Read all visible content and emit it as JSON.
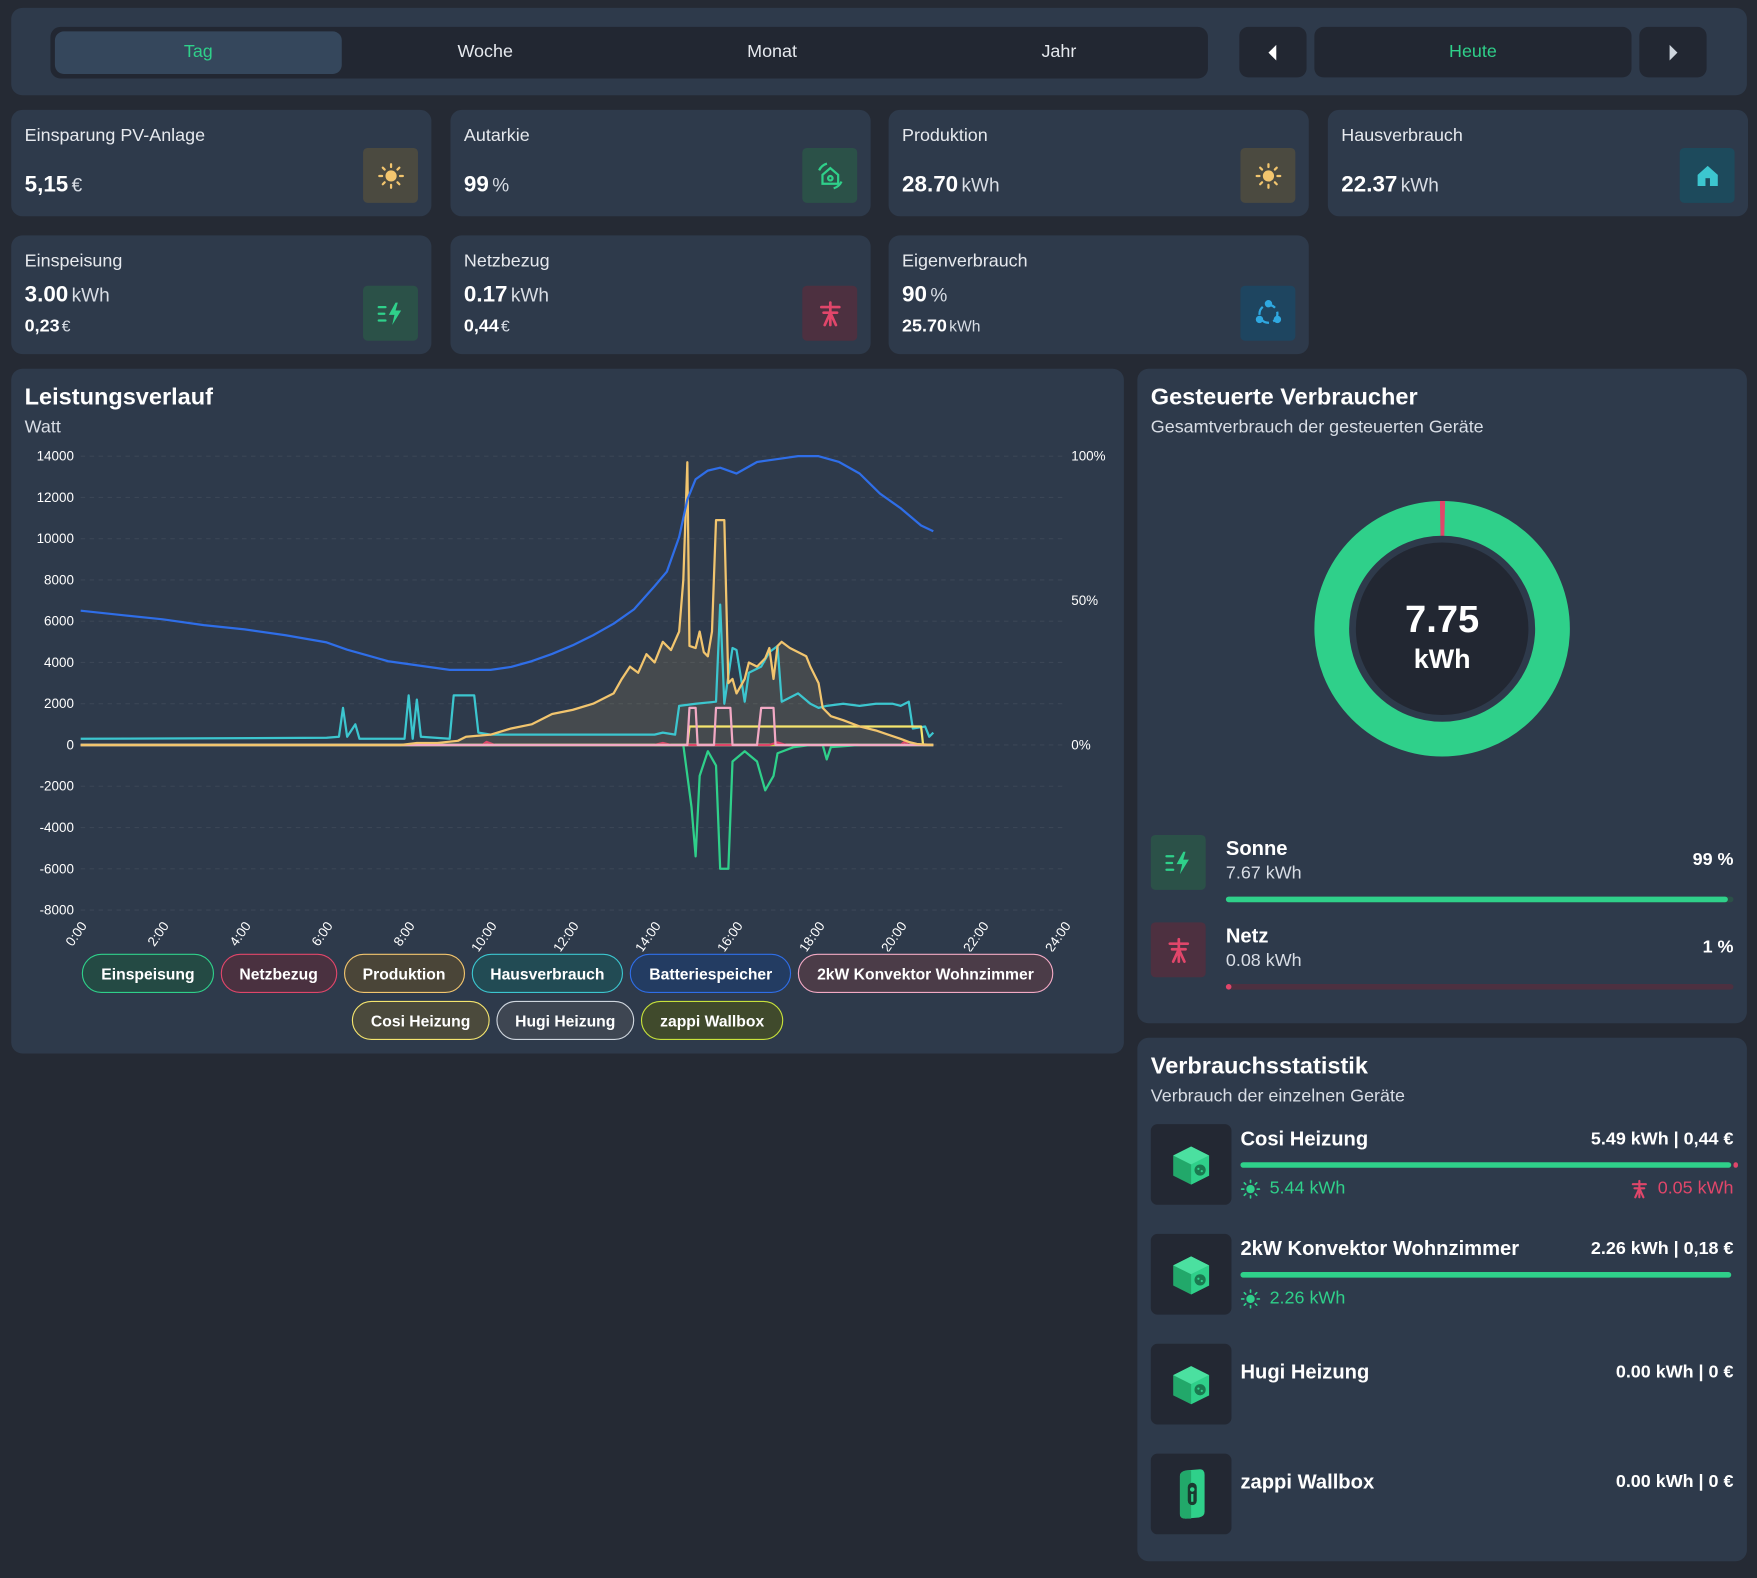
{
  "period_tabs": [
    "Tag",
    "Woche",
    "Monat",
    "Jahr"
  ],
  "active_tab": "Tag",
  "nav": {
    "today_label": "Heute"
  },
  "kpis": [
    {
      "title": "Einsparung PV-Anlage",
      "value": "5,15",
      "unit": "€",
      "icon": "sun-icon"
    },
    {
      "title": "Autarkie",
      "value": "99",
      "unit": "%",
      "icon": "autarky-icon"
    },
    {
      "title": "Produktion",
      "value": "28.70",
      "unit": "kWh",
      "icon": "sun-icon"
    },
    {
      "title": "Hausverbrauch",
      "value": "22.37",
      "unit": "kWh",
      "icon": "house-icon"
    },
    {
      "title": "Einspeisung",
      "value": "3.00",
      "unit": "kWh",
      "sub_value": "0,23",
      "sub_unit": "€",
      "icon": "feed-in-icon"
    },
    {
      "title": "Netzbezug",
      "value": "0.17",
      "unit": "kWh",
      "sub_value": "0,44",
      "sub_unit": "€",
      "icon": "grid-pylon-icon"
    },
    {
      "title": "Eigenverbrauch",
      "value": "90",
      "unit": "%",
      "sub_value": "25.70",
      "sub_unit": "kWh",
      "icon": "self-consumption-icon"
    }
  ],
  "power_chart": {
    "title": "Leistungsverlauf",
    "unit_label": "Watt"
  },
  "chart_data": {
    "type": "line",
    "title": "Leistungsverlauf",
    "ylabel": "Watt",
    "ylim": [
      -8000,
      14000
    ],
    "y_ticks": [
      "14000",
      "12000",
      "10000",
      "8000",
      "6000",
      "4000",
      "2000",
      "0",
      "-2000",
      "-4000",
      "-6000",
      "-8000"
    ],
    "y2_ticks": [
      "100%",
      "50%",
      "0%"
    ],
    "x_ticks": [
      "0:00",
      "2:00",
      "4:00",
      "6:00",
      "8:00",
      "10:00",
      "12:00",
      "14:00",
      "16:00",
      "18:00",
      "20:00",
      "22:00",
      "24:00"
    ],
    "series": [
      {
        "name": "Einspeisung",
        "color": "#2fd08a",
        "axis": "left",
        "points": [
          [
            0,
            0
          ],
          [
            14.7,
            0
          ],
          [
            14.9,
            -3000
          ],
          [
            15.0,
            -5400
          ],
          [
            15.1,
            -1500
          ],
          [
            15.3,
            -300
          ],
          [
            15.5,
            -1000
          ],
          [
            15.6,
            -6000
          ],
          [
            15.8,
            -6000
          ],
          [
            15.9,
            -800
          ],
          [
            16.2,
            -300
          ],
          [
            16.5,
            -800
          ],
          [
            16.7,
            -2200
          ],
          [
            16.9,
            -1500
          ],
          [
            17.0,
            -400
          ],
          [
            17.4,
            -100
          ],
          [
            17.8,
            0
          ],
          [
            18.1,
            0
          ],
          [
            18.2,
            -700
          ],
          [
            18.3,
            -100
          ],
          [
            19.0,
            0
          ],
          [
            20.8,
            0
          ]
        ]
      },
      {
        "name": "Netzbezug",
        "color": "#e0466a",
        "axis": "left",
        "points": [
          [
            0,
            0
          ],
          [
            9.8,
            0
          ],
          [
            9.9,
            150
          ],
          [
            10.1,
            0
          ],
          [
            14.0,
            0
          ],
          [
            14.2,
            100
          ],
          [
            14.4,
            0
          ],
          [
            16.8,
            0
          ],
          [
            17.0,
            120
          ],
          [
            17.2,
            0
          ],
          [
            20.0,
            0
          ],
          [
            20.1,
            150
          ],
          [
            20.2,
            0
          ],
          [
            20.8,
            0
          ]
        ]
      },
      {
        "name": "Produktion",
        "color": "#f2c56e",
        "axis": "left",
        "points": [
          [
            0,
            0
          ],
          [
            7.8,
            0
          ],
          [
            8.2,
            100
          ],
          [
            8.7,
            100
          ],
          [
            9.2,
            200
          ],
          [
            9.4,
            400
          ],
          [
            10.0,
            500
          ],
          [
            10.5,
            800
          ],
          [
            11.0,
            1000
          ],
          [
            11.5,
            1500
          ],
          [
            12.0,
            1700
          ],
          [
            12.5,
            2000
          ],
          [
            13.0,
            2500
          ],
          [
            13.2,
            3200
          ],
          [
            13.4,
            3800
          ],
          [
            13.6,
            3500
          ],
          [
            13.8,
            4400
          ],
          [
            14.0,
            4000
          ],
          [
            14.2,
            5000
          ],
          [
            14.4,
            4600
          ],
          [
            14.6,
            5500
          ],
          [
            14.7,
            8000
          ],
          [
            14.8,
            13700
          ],
          [
            14.85,
            4800
          ],
          [
            15.0,
            4700
          ],
          [
            15.1,
            5500
          ],
          [
            15.2,
            4500
          ],
          [
            15.3,
            4300
          ],
          [
            15.4,
            5500
          ],
          [
            15.5,
            10900
          ],
          [
            15.7,
            10900
          ],
          [
            15.8,
            3000
          ],
          [
            15.9,
            3200
          ],
          [
            16.0,
            2500
          ],
          [
            16.2,
            3200
          ],
          [
            16.3,
            4000
          ],
          [
            16.5,
            3800
          ],
          [
            16.7,
            4200
          ],
          [
            16.8,
            4700
          ],
          [
            16.9,
            3200
          ],
          [
            17.0,
            4800
          ],
          [
            17.1,
            5000
          ],
          [
            17.3,
            4700
          ],
          [
            17.5,
            4500
          ],
          [
            17.7,
            4300
          ],
          [
            17.8,
            3800
          ],
          [
            18.0,
            3000
          ],
          [
            18.1,
            1800
          ],
          [
            18.3,
            1400
          ],
          [
            18.6,
            1200
          ],
          [
            19.0,
            900
          ],
          [
            19.4,
            700
          ],
          [
            19.7,
            500
          ],
          [
            20.0,
            300
          ],
          [
            20.2,
            150
          ],
          [
            20.4,
            50
          ],
          [
            20.8,
            0
          ]
        ]
      },
      {
        "name": "Hausverbrauch",
        "color": "#3cc6cf",
        "axis": "left",
        "points": [
          [
            0,
            300
          ],
          [
            6.0,
            350
          ],
          [
            6.3,
            400
          ],
          [
            6.4,
            1800
          ],
          [
            6.5,
            400
          ],
          [
            6.7,
            1000
          ],
          [
            6.8,
            300
          ],
          [
            7.9,
            300
          ],
          [
            8.0,
            2400
          ],
          [
            8.1,
            300
          ],
          [
            8.2,
            2200
          ],
          [
            8.3,
            400
          ],
          [
            9.0,
            300
          ],
          [
            9.1,
            2400
          ],
          [
            9.6,
            2400
          ],
          [
            9.7,
            600
          ],
          [
            10.0,
            500
          ],
          [
            14.0,
            500
          ],
          [
            14.2,
            600
          ],
          [
            14.5,
            500
          ],
          [
            14.6,
            1900
          ],
          [
            15.0,
            2000
          ],
          [
            15.5,
            2100
          ],
          [
            15.6,
            6800
          ],
          [
            15.7,
            2000
          ],
          [
            15.9,
            4700
          ],
          [
            16.0,
            4600
          ],
          [
            16.2,
            2100
          ],
          [
            16.3,
            3500
          ],
          [
            16.6,
            3800
          ],
          [
            16.8,
            4500
          ],
          [
            17.0,
            4800
          ],
          [
            17.1,
            2100
          ],
          [
            17.5,
            2500
          ],
          [
            17.8,
            2000
          ],
          [
            18.0,
            1800
          ],
          [
            18.2,
            1900
          ],
          [
            18.6,
            2000
          ],
          [
            19.0,
            1900
          ],
          [
            19.4,
            2000
          ],
          [
            19.8,
            2000
          ],
          [
            20.0,
            1900
          ],
          [
            20.2,
            2100
          ],
          [
            20.3,
            800
          ],
          [
            20.6,
            900
          ],
          [
            20.7,
            400
          ],
          [
            20.8,
            600
          ]
        ]
      },
      {
        "name": "Batteriespeicher",
        "color": "#2f6ee8",
        "axis": "right",
        "points": [
          [
            0,
            46.5
          ],
          [
            1.0,
            45
          ],
          [
            2.0,
            43.5
          ],
          [
            3.0,
            41.5
          ],
          [
            4.0,
            40
          ],
          [
            5.0,
            38
          ],
          [
            6.0,
            35.5
          ],
          [
            6.5,
            33
          ],
          [
            7.0,
            31
          ],
          [
            7.5,
            29
          ],
          [
            8.0,
            28
          ],
          [
            8.5,
            27
          ],
          [
            9.0,
            26
          ],
          [
            9.5,
            26
          ],
          [
            10.0,
            26
          ],
          [
            10.5,
            27
          ],
          [
            11.0,
            29
          ],
          [
            11.5,
            31.5
          ],
          [
            12.0,
            34.5
          ],
          [
            12.5,
            38
          ],
          [
            13.0,
            42
          ],
          [
            13.5,
            47
          ],
          [
            14.0,
            55
          ],
          [
            14.3,
            60
          ],
          [
            14.6,
            72
          ],
          [
            14.8,
            85
          ],
          [
            15.0,
            92
          ],
          [
            15.3,
            95
          ],
          [
            15.6,
            96
          ],
          [
            16.0,
            94
          ],
          [
            16.5,
            98
          ],
          [
            17.0,
            99
          ],
          [
            17.5,
            100
          ],
          [
            18.0,
            100
          ],
          [
            18.5,
            98
          ],
          [
            19.0,
            94
          ],
          [
            19.5,
            87
          ],
          [
            20.0,
            82
          ],
          [
            20.5,
            76
          ],
          [
            20.8,
            74
          ]
        ]
      },
      {
        "name": "2kW Konvektor Wohnzimmer",
        "color": "#f2a9c4",
        "axis": "left",
        "points": [
          [
            0,
            0
          ],
          [
            14.8,
            0
          ],
          [
            14.85,
            1800
          ],
          [
            15.0,
            1800
          ],
          [
            15.05,
            0
          ],
          [
            15.45,
            0
          ],
          [
            15.5,
            1800
          ],
          [
            15.85,
            1800
          ],
          [
            15.9,
            0
          ],
          [
            16.5,
            0
          ],
          [
            16.6,
            1800
          ],
          [
            16.9,
            1800
          ],
          [
            16.95,
            0
          ],
          [
            20.8,
            0
          ]
        ]
      },
      {
        "name": "Cosi Heizung",
        "color": "#f5e56e",
        "axis": "left",
        "points": [
          [
            0,
            0
          ],
          [
            14.8,
            0
          ],
          [
            14.85,
            900
          ],
          [
            20.5,
            900
          ],
          [
            20.55,
            0
          ],
          [
            20.8,
            0
          ]
        ]
      },
      {
        "name": "Hugi Heizung",
        "color": "#cfd6de",
        "axis": "left",
        "points": [
          [
            0,
            0
          ],
          [
            20.8,
            0
          ]
        ]
      },
      {
        "name": "zappi Wallbox",
        "color": "#c7e23b",
        "axis": "left",
        "points": [
          [
            0,
            0
          ],
          [
            20.8,
            0
          ]
        ]
      }
    ],
    "legend": [
      "Einspeisung",
      "Netzbezug",
      "Produktion",
      "Hausverbrauch",
      "Batteriespeicher",
      "2kW Konvektor Wohnzimmer",
      "Cosi Heizung",
      "Hugi Heizung",
      "zappi Wallbox"
    ]
  },
  "controlled": {
    "title": "Gesteuerte Verbraucher",
    "subtitle": "Gesamtverbrauch der gesteuerten Geräte",
    "total_value": "7.75",
    "total_unit": "kWh",
    "donut": {
      "sun_share": 0.99,
      "grid_share": 0.01,
      "sun_color": "#2fd08a",
      "grid_color": "#e0466a"
    },
    "sources": [
      {
        "name": "Sonne",
        "kwh": "7.67 kWh",
        "pct": "99 %",
        "fraction": 0.99,
        "color": "#2fd08a",
        "icon": "feed-in-icon"
      },
      {
        "name": "Netz",
        "kwh": "0.08 kWh",
        "pct": "1 %",
        "fraction": 0.01,
        "color": "#e0466a",
        "icon": "grid-pylon-icon"
      }
    ]
  },
  "stats": {
    "title": "Verbrauchsstatistik",
    "subtitle": "Verbrauch der einzelnen Geräte",
    "devices": [
      {
        "name": "Cosi Heizung",
        "total": "5.49 kWh | 0,44 €",
        "sun": "5.44 kWh",
        "grid": "0.05 kWh",
        "icon": "smart-plug-icon"
      },
      {
        "name": "2kW Konvektor Wohnzimmer",
        "total": "2.26 kWh | 0,18 €",
        "sun": "2.26 kWh",
        "icon": "smart-plug-icon"
      },
      {
        "name": "Hugi Heizung",
        "total": "0.00 kWh | 0 €",
        "icon": "smart-plug-icon"
      },
      {
        "name": "zappi Wallbox",
        "total": "0.00 kWh | 0 €",
        "icon": "wallbox-icon"
      }
    ]
  }
}
